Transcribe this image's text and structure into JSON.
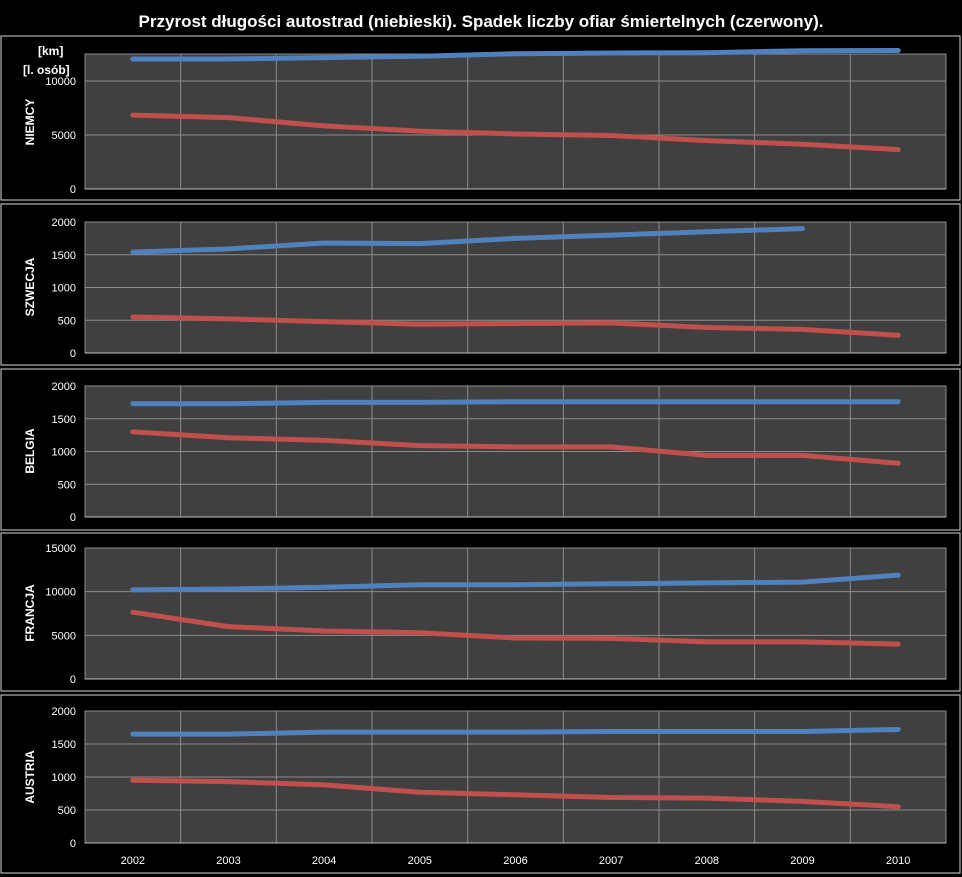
{
  "title": "Przyrost długości autostrad (niebieski). Spadek liczby ofiar śmiertelnych (czerwony).",
  "units": {
    "line1": "[km]",
    "line2": "[l. osób]"
  },
  "colors": {
    "background": "#000000",
    "plot": "#404040",
    "grid": "#8c8c8c",
    "blue": "#4f81bd",
    "red": "#c0504d",
    "text": "#ffffff"
  },
  "chart_data": [
    {
      "type": "line",
      "panel_label": "NIEMCY",
      "x": [
        "2002",
        "2003",
        "2004",
        "2005",
        "2006",
        "2007",
        "2008",
        "2009",
        "2010"
      ],
      "ylim": [
        0,
        12500
      ],
      "yticks": [
        0,
        5000,
        10000
      ],
      "ytick_labels": [
        "0",
        "5000",
        "10000"
      ],
      "grid": true,
      "series": [
        {
          "color": "#4f81bd",
          "values": [
            12040,
            12040,
            12170,
            12300,
            12530,
            12590,
            12620,
            12810,
            12820
          ]
        },
        {
          "color": "#c0504d",
          "values": [
            6840,
            6610,
            5840,
            5360,
            5090,
            4950,
            4480,
            4150,
            3650
          ]
        }
      ]
    },
    {
      "type": "line",
      "panel_label": "SZWECJA",
      "x": [
        "2002",
        "2003",
        "2004",
        "2005",
        "2006",
        "2007",
        "2008",
        "2009",
        "2010"
      ],
      "ylim": [
        0,
        2000
      ],
      "yticks": [
        0,
        500,
        1000,
        1500,
        2000
      ],
      "ytick_labels": [
        "0",
        "500",
        "1000",
        "1500",
        "2000"
      ],
      "grid": true,
      "series": [
        {
          "color": "#4f81bd",
          "values": [
            1540,
            1590,
            1680,
            1670,
            1750,
            1800,
            1850,
            1900,
            null
          ]
        },
        {
          "color": "#c0504d",
          "values": [
            550,
            520,
            480,
            440,
            450,
            460,
            390,
            360,
            270
          ]
        }
      ]
    },
    {
      "type": "line",
      "panel_label": "BELGIA",
      "x": [
        "2002",
        "2003",
        "2004",
        "2005",
        "2006",
        "2007",
        "2008",
        "2009",
        "2010"
      ],
      "ylim": [
        0,
        2000
      ],
      "yticks": [
        0,
        500,
        1000,
        1500,
        2000
      ],
      "ytick_labels": [
        "0",
        "500",
        "1000",
        "1500",
        "2000"
      ],
      "grid": true,
      "series": [
        {
          "color": "#4f81bd",
          "values": [
            1730,
            1730,
            1750,
            1750,
            1760,
            1760,
            1760,
            1760,
            1760
          ]
        },
        {
          "color": "#c0504d",
          "values": [
            1300,
            1210,
            1170,
            1090,
            1070,
            1070,
            940,
            940,
            820
          ]
        }
      ]
    },
    {
      "type": "line",
      "panel_label": "FRANCJA",
      "x": [
        "2002",
        "2003",
        "2004",
        "2005",
        "2006",
        "2007",
        "2008",
        "2009",
        "2010"
      ],
      "ylim": [
        0,
        15000
      ],
      "yticks": [
        0,
        5000,
        10000,
        15000
      ],
      "ytick_labels": [
        "0",
        "5000",
        "10000",
        "15000"
      ],
      "grid": true,
      "series": [
        {
          "color": "#4f81bd",
          "values": [
            10200,
            10300,
            10500,
            10800,
            10800,
            10900,
            11000,
            11100,
            11900
          ]
        },
        {
          "color": "#c0504d",
          "values": [
            7650,
            6000,
            5500,
            5300,
            4700,
            4650,
            4250,
            4250,
            4000
          ]
        }
      ]
    },
    {
      "type": "line",
      "panel_label": "AUSTRIA",
      "x": [
        "2002",
        "2003",
        "2004",
        "2005",
        "2006",
        "2007",
        "2008",
        "2009",
        "2010"
      ],
      "ylim": [
        0,
        2000
      ],
      "yticks": [
        0,
        500,
        1000,
        1500,
        2000
      ],
      "ytick_labels": [
        "0",
        "500",
        "1000",
        "1500",
        "2000"
      ],
      "grid": true,
      "series": [
        {
          "color": "#4f81bd",
          "values": [
            1650,
            1650,
            1680,
            1680,
            1680,
            1690,
            1690,
            1690,
            1720
          ]
        },
        {
          "color": "#c0504d",
          "values": [
            950,
            930,
            880,
            770,
            730,
            690,
            680,
            630,
            550
          ]
        }
      ]
    }
  ]
}
